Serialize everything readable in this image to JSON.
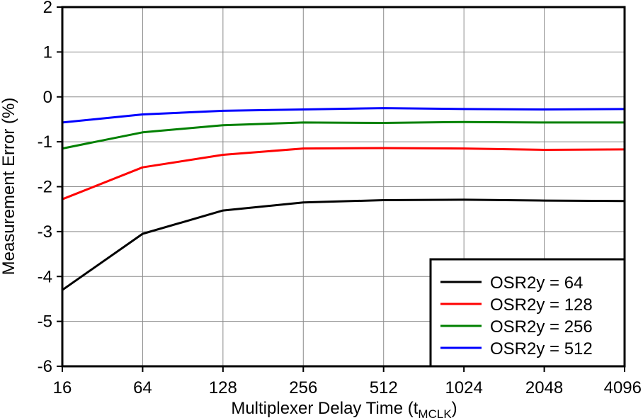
{
  "chart_data": {
    "type": "line",
    "xlabel": "Multiplexer Delay Time (t",
    "xlabel_sub": "MCLK",
    "xlabel_end": ")",
    "ylabel": "Measurement Error (%)",
    "categories": [
      "16",
      "64",
      "128",
      "256",
      "512",
      "1024",
      "2048",
      "4096"
    ],
    "ylim": [
      -6,
      2
    ],
    "yticks": [
      "2",
      "1",
      "0",
      "-1",
      "-2",
      "-3",
      "-4",
      "-5",
      "-6"
    ],
    "grid": true,
    "legend_position": "bottom-right",
    "series": [
      {
        "name": "OSR2y = 64",
        "color": "#000000",
        "values": [
          -4.3,
          -3.05,
          -2.53,
          -2.35,
          -2.3,
          -2.29,
          -2.31,
          -2.32
        ]
      },
      {
        "name": "OSR2y = 128",
        "color": "#ff0000",
        "values": [
          -2.28,
          -1.57,
          -1.29,
          -1.15,
          -1.14,
          -1.15,
          -1.18,
          -1.17
        ]
      },
      {
        "name": "OSR2y = 256",
        "color": "#008000",
        "values": [
          -1.15,
          -0.79,
          -0.63,
          -0.57,
          -0.58,
          -0.56,
          -0.57,
          -0.57
        ]
      },
      {
        "name": "OSR2y = 512",
        "color": "#0000ff",
        "values": [
          -0.57,
          -0.39,
          -0.31,
          -0.28,
          -0.25,
          -0.27,
          -0.28,
          -0.27
        ]
      }
    ]
  }
}
